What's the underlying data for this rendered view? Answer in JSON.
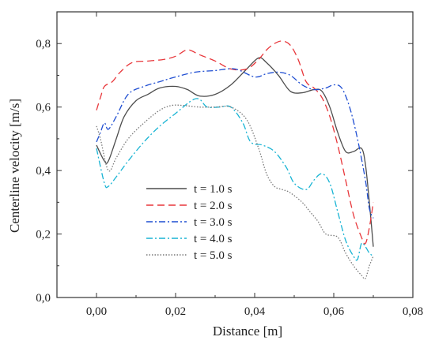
{
  "chart_data": {
    "type": "line",
    "title": "",
    "xlabel": "Distance [m]",
    "ylabel": "Centerline velocity [m/s]",
    "xlim": [
      -0.01,
      0.08
    ],
    "ylim": [
      0.0,
      0.9
    ],
    "x_ticks": [
      0.0,
      0.02,
      0.04,
      0.06,
      0.08
    ],
    "x_tick_labels": [
      "0,00",
      "0,02",
      "0,04",
      "0,06",
      "0,08"
    ],
    "y_ticks": [
      0.0,
      0.2,
      0.4,
      0.6,
      0.8
    ],
    "y_tick_labels": [
      "0,0",
      "0,2",
      "0,4",
      "0,6",
      "0,8"
    ],
    "grid": false,
    "legend_position": "center-left",
    "series": [
      {
        "name": "t = 1.0 s",
        "color": "#4d4d4d",
        "dash": "solid",
        "x": [
          0.0,
          0.002,
          0.003,
          0.005,
          0.007,
          0.01,
          0.013,
          0.016,
          0.02,
          0.023,
          0.026,
          0.03,
          0.034,
          0.038,
          0.041,
          0.043,
          0.046,
          0.049,
          0.052,
          0.055,
          0.057,
          0.059,
          0.061,
          0.063,
          0.065,
          0.067,
          0.068,
          0.069,
          0.07
        ],
        "values": [
          0.48,
          0.43,
          0.43,
          0.5,
          0.57,
          0.62,
          0.64,
          0.66,
          0.665,
          0.655,
          0.635,
          0.64,
          0.67,
          0.72,
          0.755,
          0.74,
          0.7,
          0.65,
          0.645,
          0.655,
          0.65,
          0.6,
          0.52,
          0.46,
          0.46,
          0.47,
          0.42,
          0.3,
          0.16
        ]
      },
      {
        "name": "t = 2.0 s",
        "color": "#e8373b",
        "dash": "long",
        "x": [
          0.0,
          0.001,
          0.002,
          0.004,
          0.006,
          0.009,
          0.013,
          0.017,
          0.02,
          0.023,
          0.026,
          0.03,
          0.034,
          0.038,
          0.041,
          0.043,
          0.045,
          0.047,
          0.049,
          0.051,
          0.053,
          0.055,
          0.057,
          0.059,
          0.061,
          0.063,
          0.065,
          0.067,
          0.068,
          0.069,
          0.07
        ],
        "values": [
          0.59,
          0.63,
          0.665,
          0.68,
          0.71,
          0.74,
          0.745,
          0.75,
          0.76,
          0.78,
          0.765,
          0.745,
          0.72,
          0.72,
          0.75,
          0.78,
          0.8,
          0.808,
          0.795,
          0.75,
          0.68,
          0.66,
          0.63,
          0.57,
          0.48,
          0.37,
          0.26,
          0.19,
          0.17,
          0.22,
          0.3
        ]
      },
      {
        "name": "t = 3.0 s",
        "color": "#1f4ed2",
        "dash": "dashdot",
        "x": [
          0.0,
          0.001,
          0.002,
          0.003,
          0.005,
          0.008,
          0.012,
          0.016,
          0.02,
          0.025,
          0.03,
          0.035,
          0.04,
          0.043,
          0.046,
          0.049,
          0.052,
          0.055,
          0.058,
          0.06,
          0.062,
          0.064,
          0.066,
          0.068,
          0.069,
          0.07
        ],
        "values": [
          0.49,
          0.52,
          0.55,
          0.53,
          0.57,
          0.64,
          0.665,
          0.68,
          0.695,
          0.71,
          0.715,
          0.72,
          0.695,
          0.705,
          0.71,
          0.7,
          0.67,
          0.655,
          0.66,
          0.67,
          0.66,
          0.6,
          0.5,
          0.37,
          0.28,
          0.25
        ]
      },
      {
        "name": "t = 4.0 s",
        "color": "#18b4d4",
        "dash": "dashdot",
        "x": [
          0.0,
          0.002,
          0.003,
          0.005,
          0.008,
          0.012,
          0.016,
          0.02,
          0.024,
          0.026,
          0.028,
          0.031,
          0.034,
          0.037,
          0.039,
          0.042,
          0.045,
          0.048,
          0.05,
          0.053,
          0.055,
          0.057,
          0.059,
          0.061,
          0.063,
          0.065,
          0.066,
          0.067,
          0.068,
          0.069,
          0.07
        ],
        "values": [
          0.47,
          0.36,
          0.35,
          0.38,
          0.43,
          0.49,
          0.54,
          0.58,
          0.62,
          0.625,
          0.6,
          0.6,
          0.6,
          0.55,
          0.49,
          0.48,
          0.46,
          0.41,
          0.36,
          0.34,
          0.37,
          0.39,
          0.36,
          0.27,
          0.18,
          0.13,
          0.12,
          0.17,
          0.16,
          0.14,
          0.13
        ]
      },
      {
        "name": "t = 5.0 s",
        "color": "#7a7a7a",
        "dash": "dotted",
        "x": [
          0.0,
          0.001,
          0.003,
          0.005,
          0.008,
          0.012,
          0.016,
          0.019,
          0.022,
          0.026,
          0.03,
          0.034,
          0.038,
          0.041,
          0.043,
          0.045,
          0.047,
          0.049,
          0.052,
          0.054,
          0.056,
          0.058,
          0.061,
          0.063,
          0.065,
          0.067,
          0.068,
          0.069,
          0.07
        ],
        "values": [
          0.54,
          0.5,
          0.4,
          0.44,
          0.5,
          0.55,
          0.59,
          0.605,
          0.605,
          0.6,
          0.6,
          0.6,
          0.56,
          0.47,
          0.39,
          0.35,
          0.34,
          0.33,
          0.3,
          0.27,
          0.24,
          0.2,
          0.19,
          0.14,
          0.1,
          0.07,
          0.06,
          0.1,
          0.13
        ]
      }
    ]
  }
}
